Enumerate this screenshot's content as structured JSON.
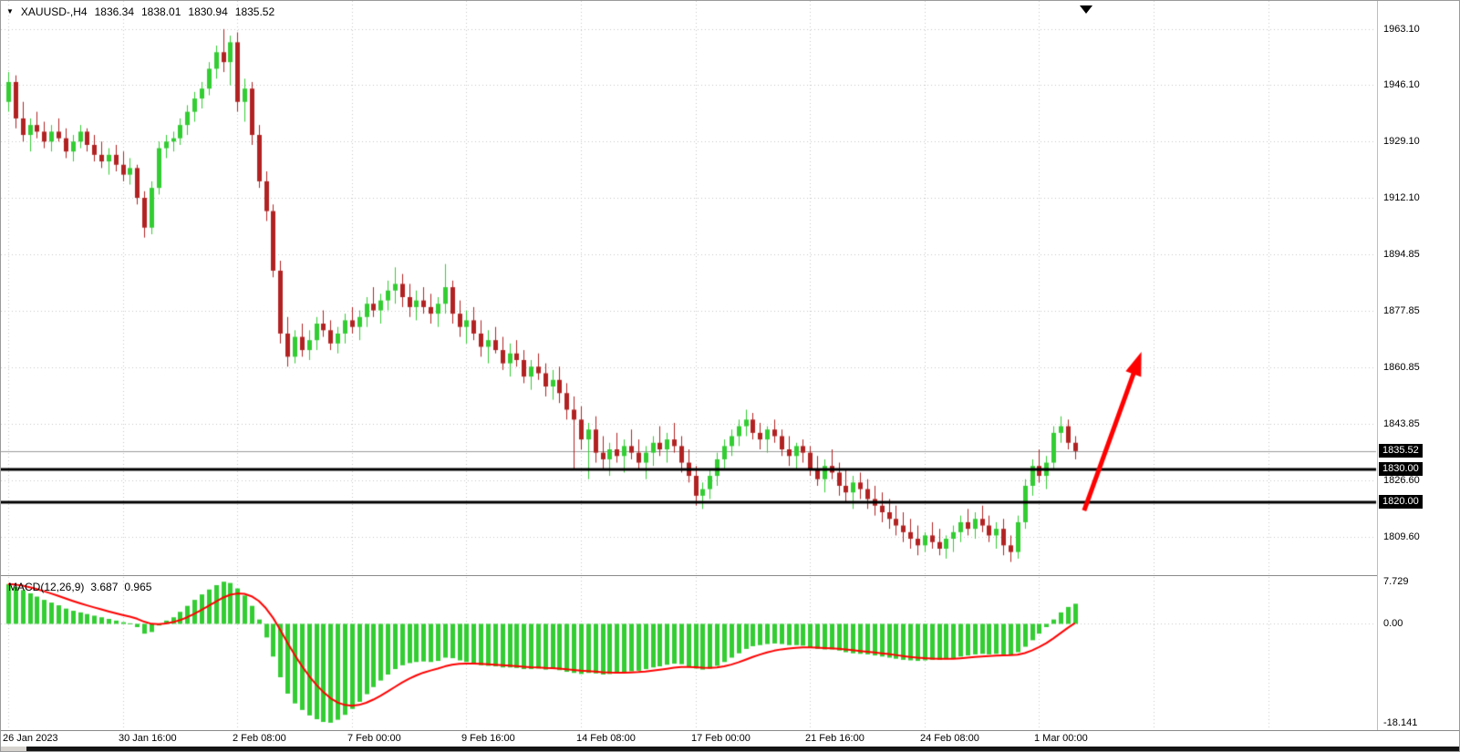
{
  "info_bar": {
    "dropdown_icon": "▼",
    "symbol_period": "XAUUSD-,H4",
    "open": "1836.34",
    "high": "1838.01",
    "low": "1830.94",
    "close": "1835.52"
  },
  "indicator": {
    "name": "MACD(12,26,9)",
    "macd_value": "3.687",
    "signal_value": "0.965"
  },
  "colors": {
    "background": "#FFFFFF",
    "grid": "#C6C6C6",
    "bull": "#32CD32",
    "bear": "#B22222",
    "macd_histogram": "#32CD32",
    "signal_line": "#FF0000",
    "hline": "#000000",
    "current_price_line": "#9B9B9B",
    "price_label_bg": "#000000",
    "price_label_text": "#FFFFFF",
    "arrow": "#FF0000",
    "text": "#000000"
  },
  "chart_data": {
    "type": "candlestick",
    "symbol": "XAUUSD-",
    "timeframe": "H4",
    "grid": true,
    "price_ylim": [
      1798.0,
      1971.5
    ],
    "price_grid": [
      1963.1,
      1946.1,
      1929.1,
      1912.1,
      1894.85,
      1877.85,
      1860.85,
      1843.85,
      1826.6,
      1809.6
    ],
    "price_axis_labels": [
      "1963.10",
      "1946.10",
      "1929.10",
      "1912.10",
      "1894.85",
      "1877.85",
      "1860.85",
      "1843.85",
      "1826.60",
      "1809.60"
    ],
    "current_price": {
      "price": 1835.52,
      "label": "1835.52"
    },
    "horizontal_lines": [
      {
        "price": 1830.0,
        "label": "1830.00"
      },
      {
        "price": 1820.0,
        "label": "1820.00"
      }
    ],
    "time_axis": [
      {
        "label": "26 Jan 2023",
        "bar": 0
      },
      {
        "label": "30 Jan 16:00",
        "bar": 16
      },
      {
        "label": "2 Feb 08:00",
        "bar": 32
      },
      {
        "label": "7 Feb 00:00",
        "bar": 48
      },
      {
        "label": "9 Feb 16:00",
        "bar": 64
      },
      {
        "label": "14 Feb 08:00",
        "bar": 80
      },
      {
        "label": "17 Feb 00:00",
        "bar": 96
      },
      {
        "label": "21 Feb 16:00",
        "bar": 112
      },
      {
        "label": "24 Feb 08:00",
        "bar": 128
      },
      {
        "label": "1 Mar 00:00",
        "bar": 144
      }
    ],
    "candles": [
      [
        1941,
        1950,
        1938,
        1947
      ],
      [
        1947,
        1949,
        1933,
        1936
      ],
      [
        1936,
        1941,
        1929,
        1931
      ],
      [
        1931,
        1936,
        1926,
        1934
      ],
      [
        1934,
        1938,
        1930,
        1932
      ],
      [
        1932,
        1935,
        1927,
        1929
      ],
      [
        1929,
        1934,
        1926,
        1932
      ],
      [
        1932,
        1936,
        1929,
        1930
      ],
      [
        1930,
        1933,
        1924,
        1926
      ],
      [
        1926,
        1931,
        1923,
        1929
      ],
      [
        1929,
        1934,
        1927,
        1932
      ],
      [
        1932,
        1933,
        1926,
        1928
      ],
      [
        1928,
        1931,
        1923,
        1925
      ],
      [
        1925,
        1929,
        1921,
        1923
      ],
      [
        1923,
        1927,
        1919,
        1925
      ],
      [
        1925,
        1928,
        1920,
        1922
      ],
      [
        1922,
        1926,
        1917,
        1919
      ],
      [
        1919,
        1924,
        1916,
        1921
      ],
      [
        1921,
        1922,
        1910,
        1912
      ],
      [
        1912,
        1914,
        1900,
        1903
      ],
      [
        1903,
        1917,
        1901,
        1915
      ],
      [
        1915,
        1929,
        1913,
        1927
      ],
      [
        1927,
        1931,
        1924,
        1929
      ],
      [
        1929,
        1932,
        1926,
        1930
      ],
      [
        1930,
        1936,
        1928,
        1934
      ],
      [
        1934,
        1940,
        1931,
        1938
      ],
      [
        1938,
        1944,
        1935,
        1942
      ],
      [
        1942,
        1947,
        1939,
        1945
      ],
      [
        1945,
        1953,
        1943,
        1951
      ],
      [
        1951,
        1958,
        1948,
        1956
      ],
      [
        1956,
        1963,
        1950,
        1953
      ],
      [
        1953,
        1961,
        1946,
        1959
      ],
      [
        1959,
        1962,
        1938,
        1941
      ],
      [
        1941,
        1948,
        1935,
        1945
      ],
      [
        1945,
        1947,
        1928,
        1931
      ],
      [
        1931,
        1934,
        1915,
        1917
      ],
      [
        1917,
        1920,
        1905,
        1908
      ],
      [
        1908,
        1910,
        1888,
        1890
      ],
      [
        1890,
        1893,
        1868,
        1871
      ],
      [
        1871,
        1876,
        1861,
        1864
      ],
      [
        1864,
        1872,
        1862,
        1870
      ],
      [
        1870,
        1874,
        1864,
        1866
      ],
      [
        1866,
        1872,
        1863,
        1869
      ],
      [
        1869,
        1876,
        1866,
        1874
      ],
      [
        1874,
        1878,
        1870,
        1872
      ],
      [
        1872,
        1875,
        1866,
        1868
      ],
      [
        1868,
        1873,
        1865,
        1871
      ],
      [
        1871,
        1877,
        1868,
        1875
      ],
      [
        1875,
        1879,
        1871,
        1873
      ],
      [
        1873,
        1878,
        1869,
        1876
      ],
      [
        1876,
        1882,
        1873,
        1880
      ],
      [
        1880,
        1885,
        1876,
        1878
      ],
      [
        1878,
        1883,
        1874,
        1881
      ],
      [
        1881,
        1887,
        1878,
        1884
      ],
      [
        1884,
        1891,
        1880,
        1886
      ],
      [
        1886,
        1889,
        1879,
        1882
      ],
      [
        1882,
        1886,
        1876,
        1879
      ],
      [
        1879,
        1884,
        1875,
        1881
      ],
      [
        1881,
        1885,
        1877,
        1879
      ],
      [
        1879,
        1883,
        1874,
        1877
      ],
      [
        1877,
        1882,
        1873,
        1880
      ],
      [
        1880,
        1892,
        1877,
        1885
      ],
      [
        1885,
        1887,
        1874,
        1877
      ],
      [
        1877,
        1881,
        1870,
        1873
      ],
      [
        1873,
        1878,
        1868,
        1875
      ],
      [
        1875,
        1879,
        1869,
        1871
      ],
      [
        1871,
        1875,
        1864,
        1867
      ],
      [
        1867,
        1872,
        1862,
        1869
      ],
      [
        1869,
        1873,
        1865,
        1866
      ],
      [
        1866,
        1870,
        1860,
        1862
      ],
      [
        1862,
        1868,
        1858,
        1865
      ],
      [
        1865,
        1869,
        1861,
        1863
      ],
      [
        1863,
        1866,
        1856,
        1858
      ],
      [
        1858,
        1863,
        1854,
        1861
      ],
      [
        1861,
        1865,
        1857,
        1859
      ],
      [
        1859,
        1862,
        1852,
        1855
      ],
      [
        1855,
        1860,
        1851,
        1857
      ],
      [
        1857,
        1861,
        1850,
        1853
      ],
      [
        1853,
        1856,
        1845,
        1848
      ],
      [
        1848,
        1852,
        1830,
        1845
      ],
      [
        1845,
        1849,
        1836,
        1839
      ],
      [
        1839,
        1844,
        1827,
        1842
      ],
      [
        1842,
        1846,
        1832,
        1835
      ],
      [
        1835,
        1840,
        1830,
        1833
      ],
      [
        1833,
        1838,
        1828,
        1836
      ],
      [
        1836,
        1841,
        1832,
        1834
      ],
      [
        1834,
        1839,
        1829,
        1837
      ],
      [
        1837,
        1842,
        1833,
        1835
      ],
      [
        1835,
        1839,
        1830,
        1832
      ],
      [
        1832,
        1837,
        1827,
        1835
      ],
      [
        1835,
        1840,
        1831,
        1838
      ],
      [
        1838,
        1843,
        1834,
        1836
      ],
      [
        1836,
        1841,
        1832,
        1839
      ],
      [
        1839,
        1844,
        1835,
        1837
      ],
      [
        1837,
        1840,
        1829,
        1832
      ],
      [
        1832,
        1836,
        1826,
        1828
      ],
      [
        1828,
        1831,
        1819,
        1822
      ],
      [
        1822,
        1826,
        1818,
        1824
      ],
      [
        1824,
        1830,
        1821,
        1828
      ],
      [
        1828,
        1835,
        1825,
        1833
      ],
      [
        1833,
        1839,
        1830,
        1837
      ],
      [
        1837,
        1842,
        1834,
        1840
      ],
      [
        1840,
        1845,
        1837,
        1843
      ],
      [
        1843,
        1848,
        1840,
        1845
      ],
      [
        1845,
        1847,
        1839,
        1841
      ],
      [
        1841,
        1844,
        1836,
        1839
      ],
      [
        1839,
        1843,
        1835,
        1842
      ],
      [
        1842,
        1845,
        1838,
        1840
      ],
      [
        1840,
        1842,
        1834,
        1836
      ],
      [
        1836,
        1840,
        1831,
        1834
      ],
      [
        1834,
        1838,
        1830,
        1837
      ],
      [
        1837,
        1839,
        1832,
        1835
      ],
      [
        1835,
        1837,
        1828,
        1830
      ],
      [
        1830,
        1834,
        1825,
        1827
      ],
      [
        1827,
        1833,
        1823,
        1831
      ],
      [
        1831,
        1836,
        1827,
        1829
      ],
      [
        1829,
        1832,
        1822,
        1825
      ],
      [
        1825,
        1830,
        1820,
        1823
      ],
      [
        1823,
        1828,
        1818,
        1826
      ],
      [
        1826,
        1829,
        1821,
        1824
      ],
      [
        1824,
        1827,
        1818,
        1821
      ],
      [
        1821,
        1825,
        1816,
        1819
      ],
      [
        1819,
        1823,
        1814,
        1817
      ],
      [
        1817,
        1821,
        1812,
        1815
      ],
      [
        1815,
        1819,
        1810,
        1813
      ],
      [
        1813,
        1817,
        1808,
        1811
      ],
      [
        1811,
        1815,
        1806,
        1809
      ],
      [
        1809,
        1813,
        1804,
        1807
      ],
      [
        1807,
        1811,
        1805,
        1810
      ],
      [
        1810,
        1814,
        1806,
        1808
      ],
      [
        1808,
        1812,
        1804,
        1806
      ],
      [
        1806,
        1810,
        1803,
        1809
      ],
      [
        1809,
        1813,
        1805,
        1811
      ],
      [
        1811,
        1816,
        1808,
        1814
      ],
      [
        1814,
        1818,
        1810,
        1812
      ],
      [
        1812,
        1817,
        1809,
        1815
      ],
      [
        1815,
        1819,
        1811,
        1813
      ],
      [
        1813,
        1816,
        1808,
        1810
      ],
      [
        1810,
        1814,
        1806,
        1812
      ],
      [
        1812,
        1815,
        1804,
        1807
      ],
      [
        1807,
        1810,
        1802,
        1805
      ],
      [
        1805,
        1816,
        1803,
        1814
      ],
      [
        1814,
        1827,
        1812,
        1825
      ],
      [
        1825,
        1833,
        1822,
        1831
      ],
      [
        1831,
        1836,
        1826,
        1828
      ],
      [
        1828,
        1834,
        1824,
        1832
      ],
      [
        1832,
        1843,
        1830,
        1841
      ],
      [
        1841,
        1846,
        1838,
        1843
      ],
      [
        1843,
        1845,
        1836,
        1838
      ],
      [
        1838,
        1840,
        1833,
        1835.5
      ]
    ],
    "macd": {
      "name": "MACD(12,26,9)",
      "macd_value": 3.687,
      "signal_value": 0.965,
      "signal_period": 9,
      "ylim": [
        -19.5,
        8.6
      ],
      "axis_labels": [
        "7.729",
        "0.00",
        "-18.141"
      ],
      "axis_values": [
        7.729,
        0,
        -18.141
      ],
      "histogram": [
        7.3,
        6.8,
        6.2,
        5.6,
        5.0,
        4.4,
        3.9,
        3.4,
        2.8,
        2.4,
        2.1,
        1.8,
        1.5,
        1.2,
        0.9,
        0.6,
        0.3,
        0.1,
        -0.6,
        -1.8,
        -1.5,
        -0.3,
        0.6,
        1.2,
        2.2,
        3.3,
        4.4,
        5.4,
        6.3,
        7.1,
        7.729,
        7.5,
        6.5,
        5.2,
        3.3,
        0.8,
        -2.5,
        -6.0,
        -9.8,
        -12.8,
        -14.6,
        -15.8,
        -16.8,
        -17.5,
        -18.0,
        -18.141,
        -17.6,
        -16.7,
        -15.6,
        -14.3,
        -12.9,
        -11.6,
        -10.4,
        -9.3,
        -8.3,
        -7.6,
        -7.2,
        -7.0,
        -6.9,
        -7.0,
        -6.8,
        -6.2,
        -6.3,
        -6.7,
        -7.0,
        -7.3,
        -7.6,
        -7.7,
        -7.8,
        -8.0,
        -8.0,
        -8.1,
        -8.3,
        -8.3,
        -8.2,
        -8.4,
        -8.3,
        -8.5,
        -8.8,
        -9.0,
        -9.2,
        -9.0,
        -9.1,
        -9.3,
        -9.2,
        -9.1,
        -8.9,
        -8.7,
        -8.6,
        -8.3,
        -8.0,
        -7.8,
        -7.5,
        -7.3,
        -7.4,
        -7.8,
        -8.2,
        -8.4,
        -8.2,
        -7.7,
        -7.0,
        -6.2,
        -5.4,
        -4.6,
        -4.1,
        -3.9,
        -3.7,
        -3.6,
        -3.7,
        -3.9,
        -3.9,
        -4.0,
        -4.3,
        -4.6,
        -4.7,
        -4.7,
        -4.9,
        -5.2,
        -5.4,
        -5.5,
        -5.6,
        -5.8,
        -6.0,
        -6.2,
        -6.4,
        -6.6,
        -6.7,
        -6.8,
        -6.7,
        -6.6,
        -6.6,
        -6.5,
        -6.3,
        -6.0,
        -5.8,
        -5.6,
        -5.5,
        -5.6,
        -5.5,
        -5.6,
        -5.7,
        -5.2,
        -4.2,
        -3.0,
        -1.8,
        -0.6,
        0.8,
        2.1,
        3.1,
        3.687
      ]
    },
    "trend_arrow": {
      "bar_from": 150.3,
      "price_from": 1817.5,
      "bar_to": 158.3,
      "price_to": 1865.5
    }
  }
}
